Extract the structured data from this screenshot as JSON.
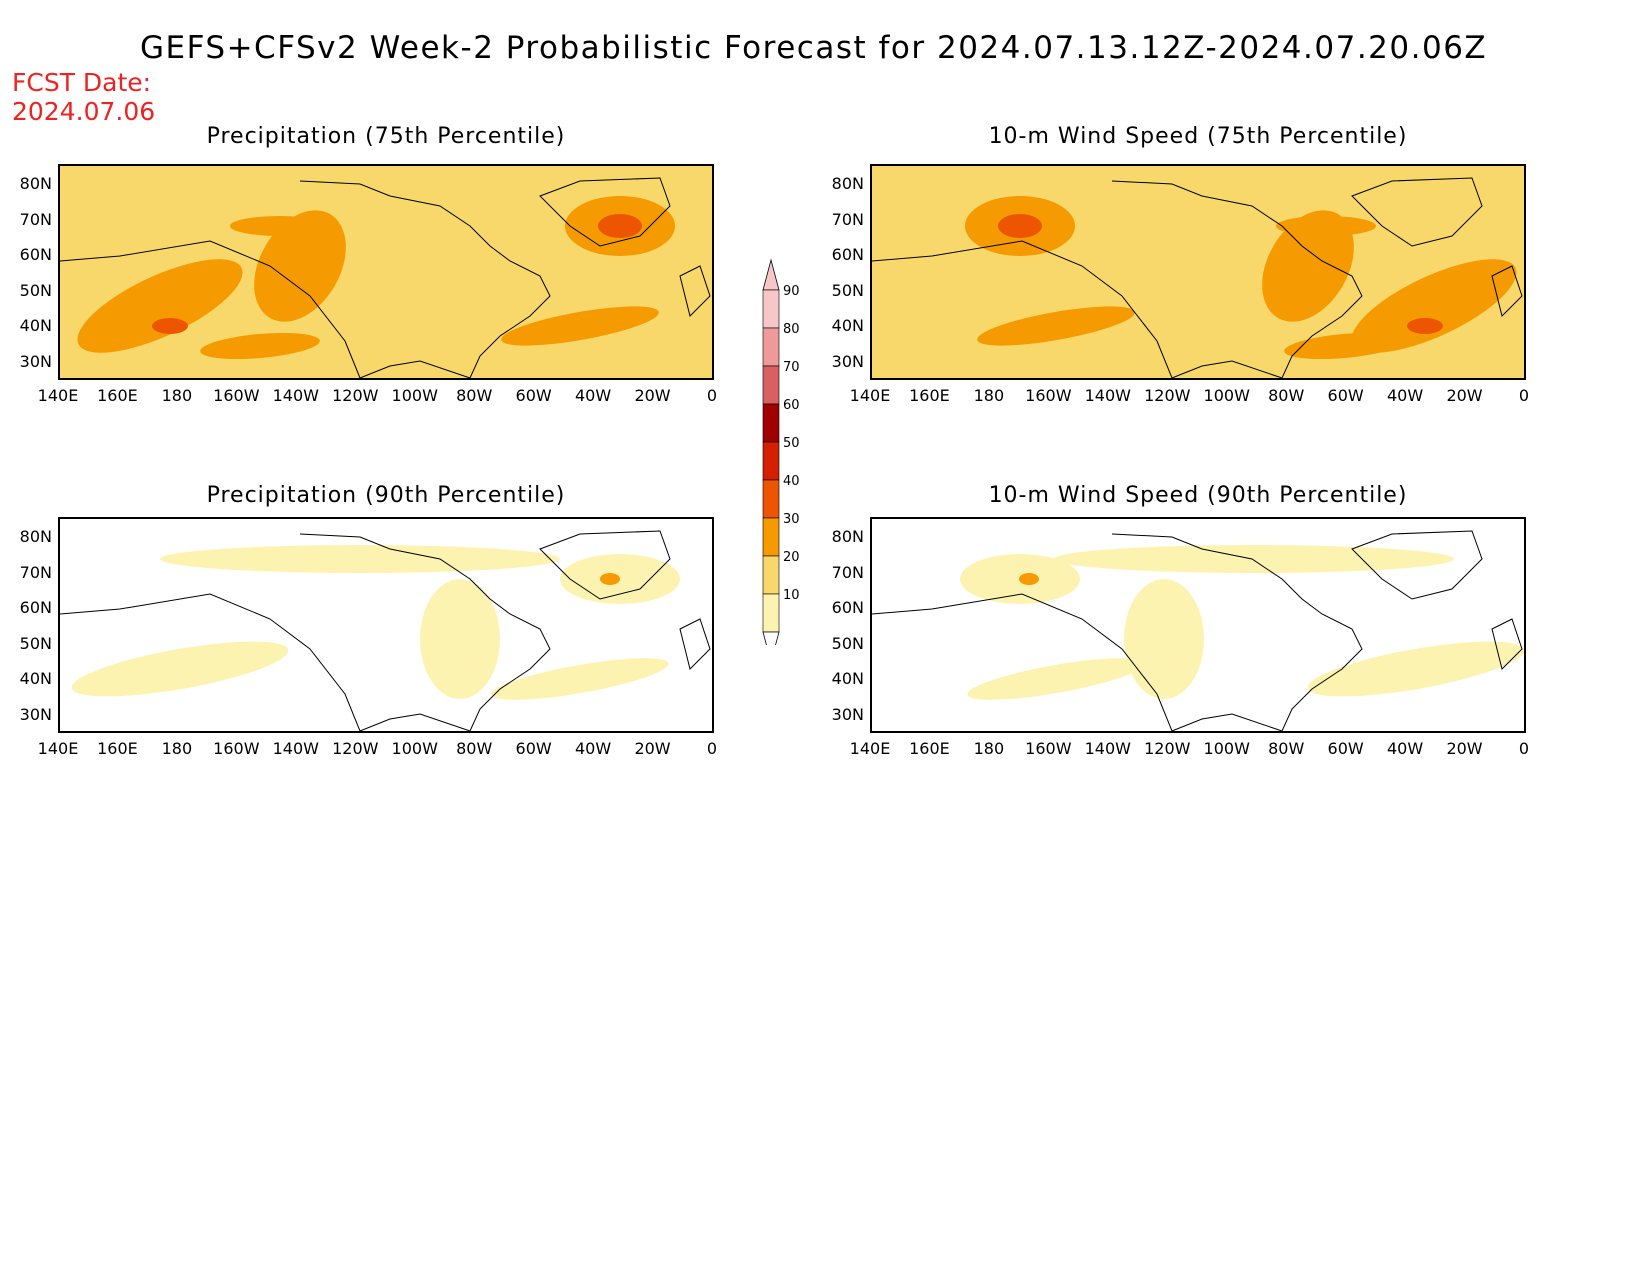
{
  "header": {
    "title": "GEFS+CFSv2 Week-2 Probabilistic Forecast for 2024.07.13.12Z-2024.07.20.06Z",
    "fcst_label": "FCST Date:",
    "fcst_date": "2024.07.06"
  },
  "panels": [
    {
      "title": "Precipitation (75th Percentile)",
      "level": "high"
    },
    {
      "title": "10-m Wind Speed (75th Percentile)",
      "level": "high"
    },
    {
      "title": "Precipitation (90th Percentile)",
      "level": "low"
    },
    {
      "title": "10-m Wind Speed (90th Percentile)",
      "level": "low"
    }
  ],
  "axes": {
    "lat_labels": [
      "80N",
      "70N",
      "60N",
      "50N",
      "40N",
      "30N"
    ],
    "lon_labels": [
      "140E",
      "160E",
      "180",
      "160W",
      "140W",
      "120W",
      "100W",
      "80W",
      "60W",
      "40W",
      "20W",
      "0"
    ]
  },
  "colorbar": {
    "labels": [
      "90",
      "80",
      "70",
      "60",
      "50",
      "40",
      "30",
      "20",
      "10"
    ],
    "colors": [
      "#f7c6c6",
      "#ee9a9a",
      "#d96060",
      "#a00000",
      "#d42000",
      "#ee5500",
      "#f59a00",
      "#f8d86a",
      "#fdf3b0"
    ]
  }
}
